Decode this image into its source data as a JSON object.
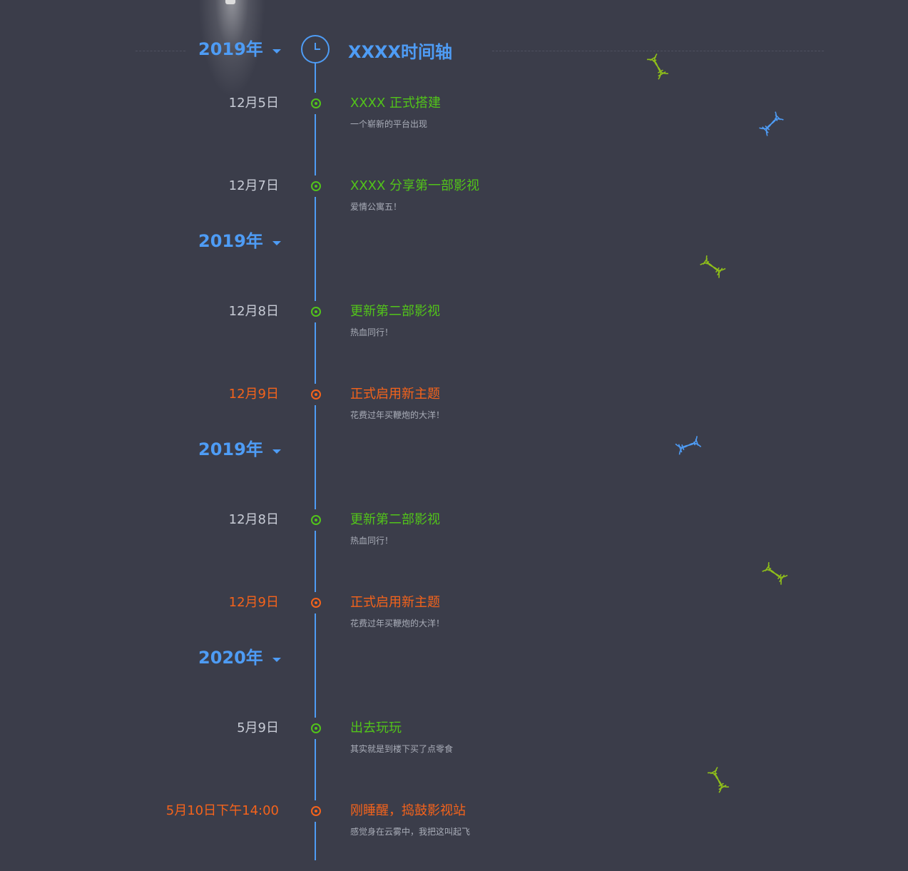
{
  "header": {
    "title": "XXXX时间轴",
    "year": "2019年"
  },
  "colors": {
    "accent": "#4e9cf5",
    "normal": "#52c41a",
    "highlight": "#f5631b",
    "background": "#3b3d4a"
  },
  "groups": [
    {
      "year": "2019年",
      "events": [
        {
          "date": "12月5日",
          "title": "XXXX 正式搭建",
          "desc": "一个崭新的平台出现",
          "highlight": false
        },
        {
          "date": "12月7日",
          "title": "XXXX 分享第一部影视",
          "desc": "爱情公寓五！",
          "highlight": false
        }
      ]
    },
    {
      "year": "2019年",
      "events": [
        {
          "date": "12月8日",
          "title": "更新第二部影视",
          "desc": "热血同行！",
          "highlight": false
        },
        {
          "date": "12月9日",
          "title": "正式启用新主题",
          "desc": "花费过年买鞭炮的大洋！",
          "highlight": true
        }
      ]
    },
    {
      "year": "2019年",
      "events": [
        {
          "date": "12月8日",
          "title": "更新第二部影视",
          "desc": "热血同行！",
          "highlight": false
        },
        {
          "date": "12月9日",
          "title": "正式启用新主题",
          "desc": "花费过年买鞭炮的大洋！",
          "highlight": true
        }
      ]
    },
    {
      "year": "2020年",
      "events": [
        {
          "date": "5月9日",
          "title": "出去玩玩",
          "desc": "其实就是到楼下买了点零食",
          "highlight": false
        },
        {
          "date": "5月10日下午14:00",
          "title": "刚睡醒，捣鼓影视站",
          "desc": "感觉身在云雾中，我把这叫起飞",
          "highlight": true
        }
      ]
    }
  ],
  "decorations": [
    {
      "icon": "dna-icon",
      "color": "#8fbf1a"
    },
    {
      "icon": "dna-icon",
      "color": "#4e9cf5"
    },
    {
      "icon": "dna-icon",
      "color": "#8fbf1a"
    },
    {
      "icon": "dna-icon",
      "color": "#4e9cf5"
    },
    {
      "icon": "dna-icon",
      "color": "#8fbf1a"
    },
    {
      "icon": "dna-icon",
      "color": "#8fbf1a"
    }
  ]
}
